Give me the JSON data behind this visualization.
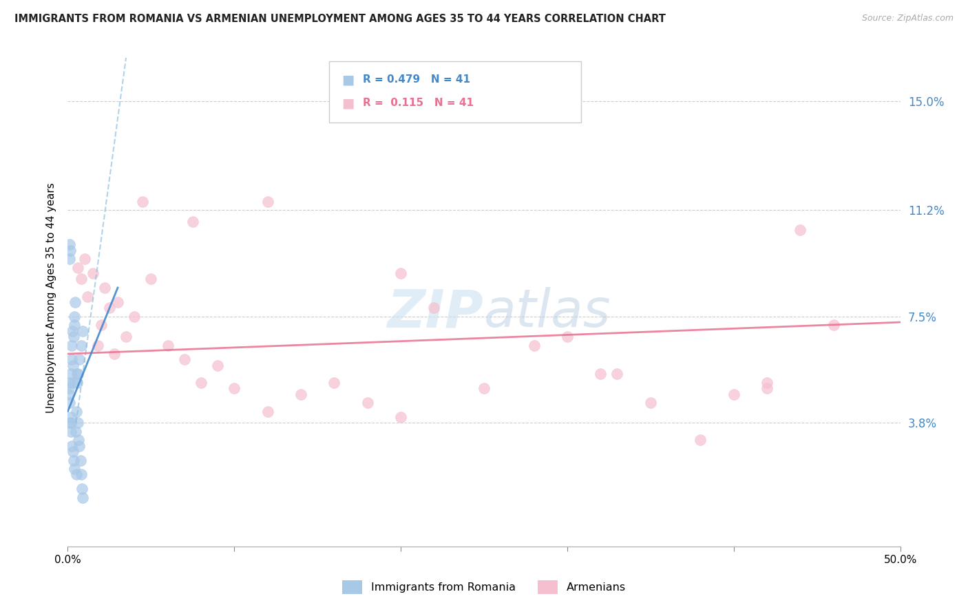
{
  "title": "IMMIGRANTS FROM ROMANIA VS ARMENIAN UNEMPLOYMENT AMONG AGES 35 TO 44 YEARS CORRELATION CHART",
  "source": "Source: ZipAtlas.com",
  "ylabel": "Unemployment Among Ages 35 to 44 years",
  "ytick_vals": [
    3.8,
    7.5,
    11.2,
    15.0
  ],
  "xlim": [
    0.0,
    50.0
  ],
  "ylim": [
    -0.5,
    16.8
  ],
  "legend1_label": "Immigrants from Romania",
  "legend2_label": "Armenians",
  "r1": "0.479",
  "r2": "0.115",
  "n1": "41",
  "n2": "41",
  "blue_color": "#a8c8e8",
  "blue_line_color": "#4488cc",
  "blue_dashed_color": "#88bbdd",
  "pink_color": "#f5bfcf",
  "pink_line_color": "#e87090",
  "watermark_color": "#cce0f0",
  "blue_x": [
    0.05,
    0.08,
    0.1,
    0.12,
    0.15,
    0.18,
    0.2,
    0.22,
    0.25,
    0.28,
    0.3,
    0.32,
    0.35,
    0.38,
    0.4,
    0.45,
    0.48,
    0.5,
    0.55,
    0.6,
    0.65,
    0.7,
    0.75,
    0.8,
    0.85,
    0.9,
    0.1,
    0.12,
    0.15,
    0.18,
    0.2,
    0.25,
    0.3,
    0.35,
    0.4,
    0.5,
    0.55,
    0.6,
    0.7,
    0.8,
    0.9
  ],
  "blue_y": [
    4.8,
    5.0,
    5.2,
    4.5,
    3.8,
    4.0,
    5.5,
    6.0,
    6.5,
    7.0,
    5.8,
    5.2,
    6.8,
    7.2,
    7.5,
    8.0,
    3.5,
    4.2,
    5.5,
    3.8,
    3.2,
    3.0,
    2.5,
    2.0,
    1.5,
    1.2,
    9.5,
    10.0,
    9.8,
    3.8,
    3.5,
    3.0,
    2.8,
    2.5,
    2.2,
    2.0,
    5.2,
    5.5,
    6.0,
    6.5,
    7.0
  ],
  "pink_x": [
    0.6,
    0.8,
    1.0,
    1.2,
    1.5,
    1.8,
    2.0,
    2.2,
    2.5,
    2.8,
    3.0,
    3.5,
    4.0,
    5.0,
    6.0,
    7.0,
    8.0,
    9.0,
    10.0,
    12.0,
    14.0,
    16.0,
    18.0,
    20.0,
    22.0,
    25.0,
    28.0,
    30.0,
    32.0,
    35.0,
    38.0,
    40.0,
    42.0,
    44.0,
    46.0,
    4.5,
    7.5,
    12.0,
    20.0,
    33.0,
    42.0
  ],
  "pink_y": [
    9.2,
    8.8,
    9.5,
    8.2,
    9.0,
    6.5,
    7.2,
    8.5,
    7.8,
    6.2,
    8.0,
    6.8,
    7.5,
    8.8,
    6.5,
    6.0,
    5.2,
    5.8,
    5.0,
    4.2,
    4.8,
    5.2,
    4.5,
    4.0,
    7.8,
    5.0,
    6.5,
    6.8,
    5.5,
    4.5,
    3.2,
    4.8,
    5.2,
    10.5,
    7.2,
    11.5,
    10.8,
    11.5,
    9.0,
    5.5,
    5.0
  ],
  "blue_line_x0": 0.0,
  "blue_line_y0": 4.2,
  "blue_line_x1": 3.0,
  "blue_line_y1": 8.5,
  "blue_dash_x0": 0.5,
  "blue_dash_y0": 3.8,
  "blue_dash_x1": 3.5,
  "blue_dash_y1": 16.5,
  "pink_line_x0": 0.0,
  "pink_line_y0": 6.2,
  "pink_line_x1": 50.0,
  "pink_line_y1": 7.3
}
